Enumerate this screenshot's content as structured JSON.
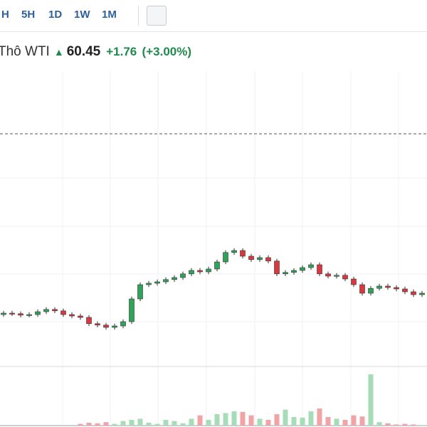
{
  "toolbar": {
    "buttons": [
      "H",
      "5H",
      "1D",
      "1W",
      "1M"
    ]
  },
  "header": {
    "name": "Thô WTI",
    "price": "60.45",
    "change": "+1.76",
    "change_pct": "(+3.00%)"
  },
  "chart_data": {
    "type": "candlestick",
    "open": [
      59.7,
      59.75,
      59.73,
      59.68,
      59.7,
      59.8,
      59.88,
      59.83,
      59.7,
      59.65,
      59.6,
      59.38,
      59.33,
      59.25,
      59.3,
      59.45,
      60.25,
      60.75,
      60.8,
      60.85,
      60.93,
      61.0,
      61.13,
      61.25,
      61.2,
      61.3,
      61.55,
      61.88,
      61.95,
      61.75,
      61.63,
      61.7,
      61.58,
      61.13,
      61.18,
      61.25,
      61.35,
      61.45,
      61.13,
      61.05,
      61.08,
      60.95,
      60.75,
      60.45,
      60.62,
      60.7,
      60.65,
      60.6,
      60.5,
      60.4
    ],
    "high": [
      59.83,
      59.83,
      59.81,
      59.78,
      59.88,
      59.96,
      59.96,
      59.91,
      59.78,
      59.73,
      59.68,
      59.46,
      59.41,
      59.38,
      59.53,
      60.33,
      60.83,
      60.88,
      60.93,
      61.01,
      61.08,
      61.21,
      61.33,
      61.33,
      61.38,
      61.63,
      61.96,
      62.03,
      62.03,
      61.83,
      61.78,
      61.78,
      61.66,
      61.26,
      61.33,
      61.43,
      61.53,
      61.53,
      61.21,
      61.16,
      61.16,
      61.03,
      60.83,
      60.7,
      60.78,
      60.78,
      60.73,
      60.68,
      60.58,
      60.53
    ],
    "low": [
      59.62,
      59.65,
      59.6,
      59.6,
      59.62,
      59.72,
      59.75,
      59.62,
      59.57,
      59.52,
      59.3,
      59.25,
      59.17,
      59.17,
      59.22,
      59.37,
      60.17,
      60.67,
      60.72,
      60.77,
      60.85,
      60.92,
      61.05,
      61.12,
      61.12,
      61.22,
      61.47,
      61.8,
      61.67,
      61.55,
      61.55,
      61.5,
      61.05,
      61.05,
      61.1,
      61.17,
      61.27,
      61.05,
      60.97,
      60.97,
      60.87,
      60.67,
      60.37,
      60.37,
      60.54,
      60.57,
      60.52,
      60.42,
      60.32,
      60.32
    ],
    "close": [
      59.75,
      59.73,
      59.68,
      59.7,
      59.8,
      59.88,
      59.83,
      59.7,
      59.65,
      59.6,
      59.38,
      59.33,
      59.25,
      59.3,
      59.45,
      60.25,
      60.75,
      60.8,
      60.85,
      60.93,
      61.0,
      61.13,
      61.25,
      61.2,
      61.3,
      61.55,
      61.88,
      61.95,
      61.75,
      61.63,
      61.7,
      61.58,
      61.13,
      61.18,
      61.25,
      61.35,
      61.45,
      61.13,
      61.05,
      61.08,
      60.95,
      60.75,
      60.45,
      60.62,
      60.7,
      60.65,
      60.6,
      60.5,
      60.4,
      60.45
    ],
    "volume": [
      0,
      0,
      0,
      0,
      0,
      0,
      0,
      0,
      0,
      3,
      5,
      4,
      6,
      3,
      8,
      10,
      12,
      5,
      3,
      10,
      8,
      4,
      12,
      18,
      10,
      20,
      22,
      25,
      24,
      18,
      12,
      10,
      20,
      28,
      15,
      14,
      25,
      30,
      15,
      12,
      10,
      18,
      16,
      90,
      6,
      4,
      2,
      3,
      2,
      1
    ],
    "ylim": [
      58,
      67
    ],
    "volume_lim": [
      0,
      100
    ],
    "reference_line": 66.05,
    "up_color": "#2fa35a",
    "down_color": "#d8383f",
    "up_volume_color": "#a6dcb7",
    "down_volume_color": "#f2a3a6"
  }
}
